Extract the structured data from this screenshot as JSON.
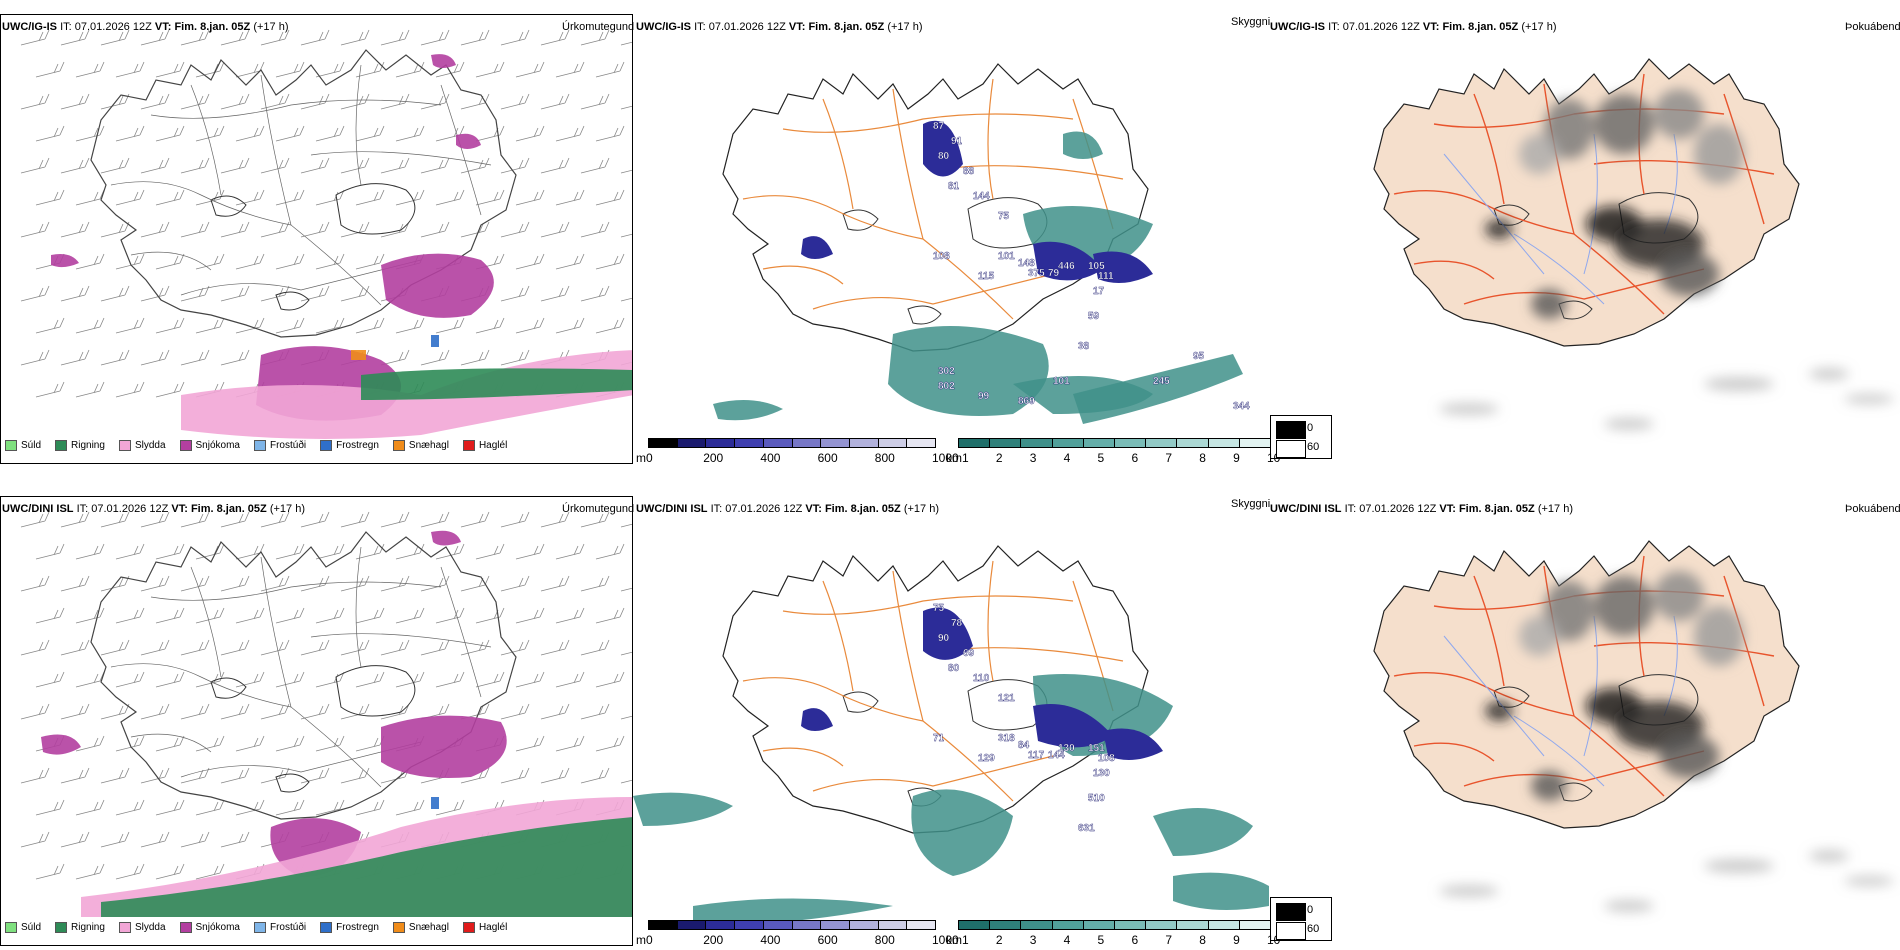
{
  "colors": {
    "sudl": "#7fe07f",
    "rigning": "#2e8b57",
    "slydda": "#f2a6d6",
    "snjokoma": "#b33fa0",
    "frostudi": "#7fb5e8",
    "frostregn": "#2f6fc9",
    "snaehagl": "#f08c1a",
    "haglel": "#e01b1b",
    "height_scale": [
      "#000000",
      "#1a1a6e",
      "#2c2c98",
      "#3f3fb0",
      "#5a5abd",
      "#7777c7",
      "#9494d2",
      "#b1b1dc",
      "#cdcde6",
      "#e6e6f2"
    ],
    "vis_scale": [
      "#1f6f6a",
      "#2f807a",
      "#3f908a",
      "#51a09a",
      "#64aea9",
      "#7abcb7",
      "#92cac6",
      "#abd8d4",
      "#c6e6e3",
      "#e2f3f1"
    ],
    "land": "#f5dfcc",
    "road": "#e8542c",
    "river": "#8fa8ee"
  },
  "top_row": {
    "precip": {
      "model": "UWC/IG-IS",
      "it_label": "IT:",
      "it_value": "07.01.2026 12Z",
      "vt_label": "VT:",
      "vt_value": "Fim. 8.jan. 05Z",
      "lead": "(+17 h)",
      "type_label": "Úrkomutegund"
    },
    "ceiling": {
      "model": "UWC/IG-IS",
      "it_label": "IT:",
      "it_value": "07.01.2026 12Z",
      "vt_label": "VT:",
      "vt_value": "Fim. 8.jan. 05Z",
      "lead": "(+17 h)",
      "type_label": "Skyggni",
      "labels": [
        "87",
        "91",
        "80",
        "88",
        "81",
        "144",
        "75",
        "108",
        "101",
        "148",
        "375",
        "115",
        "79",
        "446",
        "105",
        "111",
        "17",
        "59",
        "38",
        "302",
        "802",
        "99",
        "869",
        "101",
        "245",
        "95",
        "344"
      ]
    },
    "fog": {
      "model": "UWC/IG-IS",
      "it_label": "IT:",
      "it_value": "07.01.2026 12Z",
      "vt_label": "VT:",
      "vt_value": "Fim. 8.jan. 05Z",
      "lead": "(+17 h)",
      "type_label": "Þokuábendi"
    }
  },
  "bottom_row": {
    "precip": {
      "model": "UWC/DINI ISL",
      "it_label": "IT:",
      "it_value": "07.01.2026 12Z",
      "vt_label": "VT:",
      "vt_value": "Fim. 8.jan. 05Z",
      "lead": "(+17 h)",
      "type_label": "Úrkomutegund"
    },
    "ceiling": {
      "model": "UWC/DINI ISL",
      "it_label": "IT:",
      "it_value": "07.01.2026 12Z",
      "vt_label": "VT:",
      "vt_value": "Fim. 8.jan. 05Z",
      "lead": "(+17 h)",
      "type_label": "Skyggni",
      "labels": [
        "75",
        "78",
        "90",
        "69",
        "80",
        "110",
        "121",
        "71",
        "318",
        "84",
        "117",
        "129",
        "144",
        "130",
        "151",
        "108",
        "130",
        "510",
        "631"
      ]
    },
    "fog": {
      "model": "UWC/DINI ISL",
      "it_label": "IT:",
      "it_value": "07.01.2026 12Z",
      "vt_label": "VT:",
      "vt_value": "Fim. 8.jan. 05Z",
      "lead": "(+17 h)",
      "type_label": "Þokuábendi"
    }
  },
  "precip_legend": [
    "Súld",
    "Rigning",
    "Slydda",
    "Snjókoma",
    "Frostúði",
    "Frostregn",
    "Snæhagl",
    "Haglél"
  ],
  "height_bar": {
    "unit": "m",
    "ticks": [
      "0",
      "200",
      "400",
      "600",
      "800",
      "1000"
    ]
  },
  "vis_bar": {
    "unit": "km",
    "ticks": [
      "1",
      "2",
      "3",
      "4",
      "5",
      "6",
      "7",
      "8",
      "9",
      "10"
    ]
  },
  "cloud_key": {
    "dark_value": "0",
    "light_value": "60"
  }
}
